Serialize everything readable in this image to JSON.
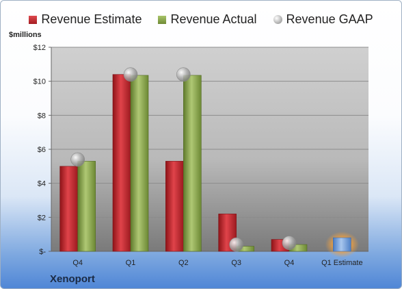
{
  "chart_data": {
    "type": "bar",
    "ylabel": "$millions",
    "ylim": [
      0,
      12
    ],
    "yticks": [
      0,
      2,
      4,
      6,
      8,
      10,
      12
    ],
    "ytick_labels": [
      "$-",
      "$2",
      "$4",
      "$6",
      "$8",
      "$10",
      "$12"
    ],
    "categories": [
      "Q4",
      "Q1",
      "Q2",
      "Q3",
      "Q4",
      "Q1 Estimate"
    ],
    "series": [
      {
        "name": "Revenue Estimate",
        "values": [
          5.0,
          10.4,
          5.3,
          2.2,
          0.7,
          null
        ]
      },
      {
        "name": "Revenue Actual",
        "values": [
          5.3,
          10.35,
          10.35,
          0.3,
          0.4,
          null
        ]
      },
      {
        "name": "Revenue GAAP",
        "values": [
          5.4,
          10.4,
          10.4,
          0.4,
          0.5,
          null
        ]
      }
    ],
    "forecast": {
      "category": "Q1 Estimate",
      "value": 0.8
    },
    "grid": true,
    "legend_position": "top",
    "colors": {
      "estimate": "#c0262c",
      "actual": "#8aa64a",
      "gaap": "#b4b4b4",
      "forecast": "#6b97d4",
      "forecast_glow": "#f0a040"
    },
    "company": "Xenoport"
  }
}
